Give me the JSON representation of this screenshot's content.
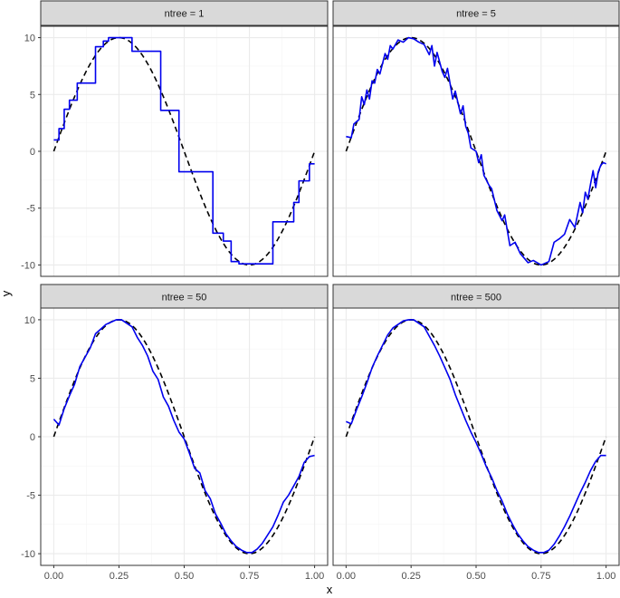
{
  "chart_data": {
    "type": "line",
    "facet_variable": "ntree",
    "xlabel": "x",
    "ylabel": "y",
    "xlim": [
      -0.05,
      1.05
    ],
    "ylim": [
      -11,
      11
    ],
    "x_ticks": [
      0.0,
      0.25,
      0.5,
      0.75,
      1.0
    ],
    "x_tick_labels": [
      "0.00",
      "0.25",
      "0.50",
      "0.75",
      "1.00"
    ],
    "y_ticks": [
      -10,
      -5,
      0,
      5,
      10
    ],
    "y_tick_labels": [
      "-10",
      "-5",
      "0",
      "5",
      "10"
    ],
    "grid": true,
    "theme": "bw",
    "colors": {
      "prediction": "#0000ee",
      "truth": "#000000",
      "strip_fill": "#d9d9d9",
      "panel_border": "#333333",
      "grid_major": "#ebebeb",
      "grid_minor": "#f5f5f5"
    },
    "reference_curve": {
      "style": "dashed",
      "function": "10*sin(2*pi*x)",
      "x": [
        0.0,
        0.05,
        0.1,
        0.15,
        0.2,
        0.25,
        0.3,
        0.35,
        0.4,
        0.45,
        0.5,
        0.55,
        0.6,
        0.65,
        0.7,
        0.75,
        0.8,
        0.85,
        0.9,
        0.95,
        1.0
      ],
      "y": [
        0.0,
        3.09,
        5.88,
        8.09,
        9.51,
        10.0,
        9.51,
        8.09,
        5.88,
        3.09,
        0.0,
        -3.09,
        -5.88,
        -8.09,
        -9.51,
        -10.0,
        -9.51,
        -8.09,
        -5.88,
        -3.09,
        0.0
      ]
    },
    "panels": [
      {
        "label": "ntree = 1",
        "series_style": "step",
        "x": [
          0.0,
          0.02,
          0.02,
          0.04,
          0.04,
          0.06,
          0.06,
          0.09,
          0.09,
          0.16,
          0.16,
          0.19,
          0.19,
          0.21,
          0.21,
          0.3,
          0.3,
          0.32,
          0.32,
          0.41,
          0.41,
          0.48,
          0.48,
          0.51,
          0.51,
          0.61,
          0.61,
          0.65,
          0.65,
          0.68,
          0.68,
          0.71,
          0.71,
          0.84,
          0.84,
          0.92,
          0.92,
          0.94,
          0.94,
          0.98,
          0.98,
          1.0
        ],
        "y": [
          1.0,
          1.0,
          2.0,
          2.0,
          3.7,
          3.7,
          4.5,
          4.5,
          6.0,
          6.0,
          9.2,
          9.2,
          9.7,
          9.7,
          10.0,
          10.0,
          8.8,
          8.8,
          8.8,
          8.8,
          3.6,
          3.6,
          -1.8,
          -1.8,
          -1.8,
          -1.8,
          -7.2,
          -7.2,
          -7.9,
          -7.9,
          -9.7,
          -9.7,
          -9.9,
          -9.9,
          -6.2,
          -6.2,
          -4.5,
          -4.5,
          -2.6,
          -2.6,
          -1.1,
          -1.1
        ]
      },
      {
        "label": "ntree = 5",
        "series_style": "jagged",
        "x": [
          0.0,
          0.02,
          0.03,
          0.05,
          0.06,
          0.07,
          0.08,
          0.09,
          0.1,
          0.11,
          0.12,
          0.13,
          0.15,
          0.16,
          0.17,
          0.18,
          0.2,
          0.22,
          0.24,
          0.26,
          0.28,
          0.3,
          0.32,
          0.33,
          0.34,
          0.35,
          0.37,
          0.38,
          0.39,
          0.41,
          0.42,
          0.44,
          0.45,
          0.46,
          0.47,
          0.48,
          0.5,
          0.51,
          0.52,
          0.53,
          0.55,
          0.56,
          0.58,
          0.6,
          0.61,
          0.63,
          0.65,
          0.67,
          0.7,
          0.72,
          0.75,
          0.78,
          0.8,
          0.82,
          0.84,
          0.86,
          0.88,
          0.9,
          0.91,
          0.92,
          0.93,
          0.94,
          0.95,
          0.96,
          0.97,
          0.98,
          0.99,
          1.0
        ],
        "y": [
          1.3,
          1.2,
          2.4,
          2.8,
          4.8,
          4.1,
          5.4,
          4.6,
          6.2,
          6.0,
          7.2,
          6.8,
          8.6,
          8.1,
          9.3,
          9.0,
          9.8,
          9.6,
          10.0,
          9.9,
          9.6,
          9.4,
          8.5,
          9.3,
          7.5,
          8.7,
          7.0,
          6.5,
          7.3,
          4.6,
          5.3,
          3.3,
          4.0,
          2.2,
          1.6,
          0.3,
          0.0,
          -1.0,
          -0.3,
          -2.1,
          -3.0,
          -3.3,
          -5.2,
          -6.1,
          -5.6,
          -8.3,
          -8.0,
          -9.0,
          -9.8,
          -9.6,
          -10.0,
          -9.7,
          -8.0,
          -7.7,
          -7.3,
          -6.0,
          -6.7,
          -4.5,
          -5.4,
          -3.6,
          -4.2,
          -2.9,
          -1.7,
          -3.2,
          -1.8,
          -1.2,
          -1.0,
          -1.1
        ]
      },
      {
        "label": "ntree = 50",
        "series_style": "smooth",
        "x": [
          0.0,
          0.02,
          0.04,
          0.06,
          0.08,
          0.1,
          0.12,
          0.14,
          0.16,
          0.18,
          0.2,
          0.22,
          0.24,
          0.26,
          0.28,
          0.3,
          0.32,
          0.34,
          0.36,
          0.38,
          0.4,
          0.42,
          0.44,
          0.46,
          0.48,
          0.5,
          0.52,
          0.54,
          0.56,
          0.58,
          0.6,
          0.62,
          0.64,
          0.66,
          0.68,
          0.7,
          0.72,
          0.74,
          0.76,
          0.78,
          0.8,
          0.82,
          0.84,
          0.86,
          0.88,
          0.9,
          0.92,
          0.94,
          0.96,
          0.98,
          1.0
        ],
        "y": [
          1.5,
          1.0,
          2.4,
          3.5,
          4.5,
          6.0,
          6.8,
          7.6,
          8.8,
          9.2,
          9.6,
          9.8,
          10.0,
          10.0,
          9.7,
          9.4,
          8.5,
          7.8,
          6.9,
          5.6,
          4.9,
          3.4,
          2.6,
          1.4,
          0.4,
          -0.2,
          -1.4,
          -2.7,
          -3.1,
          -4.6,
          -5.3,
          -6.6,
          -7.4,
          -8.3,
          -8.9,
          -9.4,
          -9.7,
          -9.9,
          -9.9,
          -9.6,
          -9.1,
          -8.4,
          -7.7,
          -6.7,
          -5.6,
          -5.0,
          -4.2,
          -3.4,
          -2.2,
          -1.7,
          -1.6
        ]
      },
      {
        "label": "ntree = 500",
        "series_style": "smooth",
        "x": [
          0.0,
          0.02,
          0.04,
          0.06,
          0.08,
          0.1,
          0.12,
          0.14,
          0.16,
          0.18,
          0.2,
          0.22,
          0.24,
          0.26,
          0.28,
          0.3,
          0.32,
          0.34,
          0.36,
          0.38,
          0.4,
          0.42,
          0.44,
          0.46,
          0.48,
          0.5,
          0.52,
          0.54,
          0.56,
          0.58,
          0.6,
          0.62,
          0.64,
          0.66,
          0.68,
          0.7,
          0.72,
          0.74,
          0.76,
          0.78,
          0.8,
          0.82,
          0.84,
          0.86,
          0.88,
          0.9,
          0.92,
          0.94,
          0.96,
          0.98,
          1.0
        ],
        "y": [
          1.3,
          1.1,
          2.3,
          3.4,
          4.6,
          5.9,
          6.9,
          7.8,
          8.7,
          9.3,
          9.6,
          9.9,
          10.0,
          10.0,
          9.7,
          9.4,
          8.6,
          7.8,
          6.9,
          5.9,
          4.9,
          3.6,
          2.5,
          1.4,
          0.4,
          -0.5,
          -1.5,
          -2.6,
          -3.5,
          -4.6,
          -5.5,
          -6.6,
          -7.5,
          -8.3,
          -8.9,
          -9.4,
          -9.7,
          -9.9,
          -9.9,
          -9.7,
          -9.2,
          -8.5,
          -7.7,
          -6.8,
          -5.8,
          -4.8,
          -3.9,
          -2.9,
          -2.1,
          -1.6,
          -1.6
        ]
      }
    ]
  }
}
